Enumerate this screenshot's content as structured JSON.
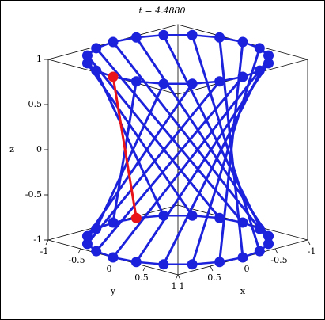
{
  "chart_data": {
    "type": "hyperboloid-3d",
    "title": "t = 4.4880",
    "xlabel": "x",
    "ylabel": "y",
    "zlabel": "z",
    "xlim": [
      -1,
      1
    ],
    "ylim": [
      -1,
      1
    ],
    "zlim": [
      -1,
      1
    ],
    "xticks": [
      -1,
      -0.5,
      0,
      0.5,
      1
    ],
    "yticks": [
      -1,
      -0.5,
      0,
      0.5,
      1
    ],
    "zticks": [
      -1,
      -0.5,
      0,
      0.5,
      1
    ],
    "color": "#1c22dc",
    "top": {
      "z": 1,
      "x": [
        1,
        0.951,
        0.809,
        0.588,
        0.309,
        0,
        -0.309,
        -0.588,
        -0.809,
        -0.951,
        -1,
        -0.951,
        -0.809,
        -0.588,
        -0.309,
        0,
        0.309,
        0.588,
        0.809,
        0.951
      ],
      "y": [
        0,
        0.309,
        0.588,
        0.809,
        0.951,
        1,
        0.951,
        0.809,
        0.588,
        0.309,
        0,
        -0.309,
        -0.588,
        -0.809,
        -0.951,
        -1,
        -0.951,
        -0.809,
        -0.588,
        -0.309
      ]
    },
    "bottom": {
      "z": -1,
      "x": [
        -0.309,
        0,
        0.309,
        0.588,
        0.809,
        0.951,
        1,
        0.951,
        0.809,
        0.588,
        0.309,
        0,
        -0.309,
        -0.588,
        -0.809,
        -0.951,
        -1,
        -0.951,
        -0.809,
        -0.588
      ],
      "y": [
        -0.951,
        -1,
        -0.951,
        -0.809,
        -0.588,
        -0.309,
        0,
        0.309,
        0.588,
        0.809,
        0.951,
        1,
        0.951,
        0.809,
        0.588,
        0.309,
        0,
        -0.309,
        -0.588,
        -0.809
      ]
    },
    "highlight": {
      "index": 0,
      "color": "#e8141a"
    }
  }
}
